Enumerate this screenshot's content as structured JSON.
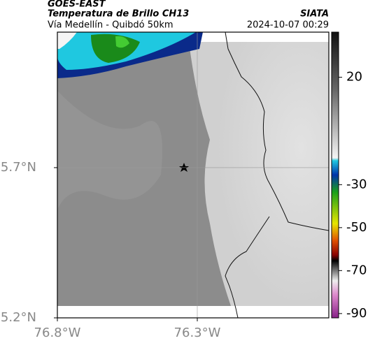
{
  "header": {
    "satellite": "GOES-EAST",
    "product": "Temperatura de Brillo CH13",
    "route": "Vía Medellín - Quibdó 50km",
    "source": "SIATA",
    "timestamp": "2024-10-07 00:29"
  },
  "map": {
    "xlim": [
      -76.8,
      -75.83
    ],
    "ylim": [
      5.2,
      6.151
    ],
    "xticks": [
      {
        "value": -76.8,
        "label": "76.8°W"
      },
      {
        "value": -76.3,
        "label": "76.3°W"
      }
    ],
    "yticks": [
      {
        "value": 5.2,
        "label": "5.2°N"
      },
      {
        "value": 5.7,
        "label": "5.7°N"
      }
    ],
    "grid": true
  },
  "colorbar": {
    "ylim": [
      -92,
      41
    ],
    "yticks": [
      20,
      -30,
      -50,
      -70,
      -90
    ]
  }
}
